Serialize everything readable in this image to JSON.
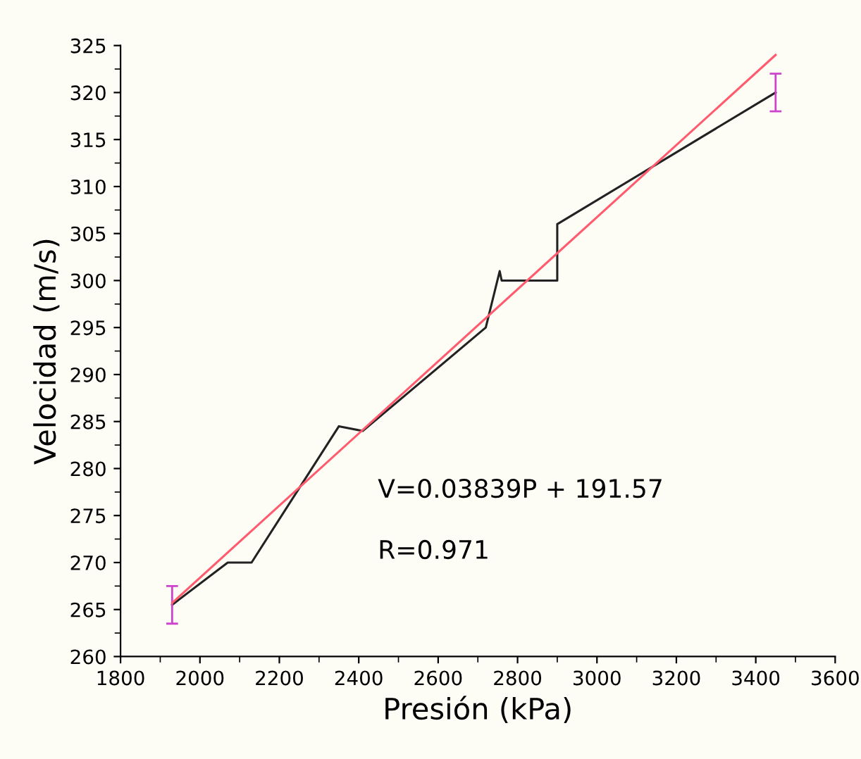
{
  "chart_data": {
    "type": "line",
    "xlabel": "Presión (kPa)",
    "ylabel": "Velocidad (m/s)",
    "xlim": [
      1800,
      3600
    ],
    "xticks": [
      1800,
      2000,
      2200,
      2400,
      2600,
      2800,
      3000,
      3200,
      3400,
      3600
    ],
    "ylim": [
      260,
      325
    ],
    "yticks": [
      260,
      265,
      270,
      275,
      280,
      285,
      290,
      295,
      300,
      305,
      310,
      315,
      320,
      325
    ],
    "grid": false,
    "legend": false,
    "marker": "none",
    "line_style": "solid",
    "series": [
      {
        "color": "#222222",
        "x": [
          1930,
          2070,
          2130,
          2350,
          2410,
          2720,
          2755,
          2760,
          2900,
          2900,
          3450
        ],
        "values": [
          265.5,
          270,
          270,
          284.5,
          284,
          295,
          301,
          300,
          300,
          306,
          320
        ],
        "errors": [
          2,
          null,
          null,
          null,
          null,
          null,
          null,
          null,
          null,
          null,
          2
        ]
      },
      {
        "type": "line",
        "color": "#ff5a6e",
        "x": [
          1930,
          3450
        ],
        "values": [
          265.7,
          324.0
        ]
      }
    ],
    "annotations": [
      {
        "text": "V=0.03839P + 191.57"
      },
      {
        "text": "R=0.971"
      }
    ]
  }
}
